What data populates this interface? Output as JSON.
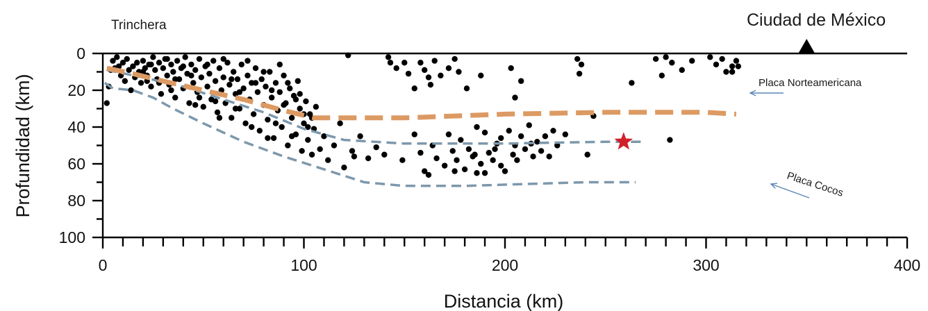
{
  "chart_data": {
    "type": "scatter",
    "xlabel": "Distancia (km)",
    "ylabel": "Profundidad (km)",
    "xlim": [
      0,
      400
    ],
    "ylim": [
      0,
      100
    ],
    "y_inverted": true,
    "xticks": [
      "0",
      "100",
      "200",
      "300",
      "400"
    ],
    "yticks": [
      "0",
      "20",
      "40",
      "60",
      "80",
      "100"
    ],
    "annotations": {
      "trench": "Trinchera",
      "city": "Ciudad de México",
      "north_american_plate": "Placa Norteamericana",
      "cocos_plate": "Placa Cocos"
    },
    "colors": {
      "points": "#000000",
      "continental_line": "#dc9a63",
      "slab_lines": "#7d98ac",
      "star": "#d0202a",
      "arrows": "#5b86b7"
    },
    "lines": {
      "continental_moho": [
        [
          2,
          8
        ],
        [
          15,
          11
        ],
        [
          30,
          15
        ],
        [
          50,
          20
        ],
        [
          70,
          25
        ],
        [
          90,
          31
        ],
        [
          105,
          35
        ],
        [
          110,
          35
        ],
        [
          150,
          35
        ],
        [
          200,
          33
        ],
        [
          250,
          32
        ],
        [
          300,
          32
        ],
        [
          315,
          33
        ]
      ],
      "slab_top": [
        [
          2,
          9
        ],
        [
          20,
          13
        ],
        [
          40,
          18
        ],
        [
          60,
          25
        ],
        [
          80,
          32
        ],
        [
          100,
          41
        ],
        [
          120,
          47
        ],
        [
          150,
          49
        ],
        [
          200,
          49
        ],
        [
          250,
          48
        ],
        [
          270,
          48
        ]
      ],
      "slab_bottom": [
        [
          1,
          16
        ],
        [
          5,
          19
        ],
        [
          15,
          20
        ],
        [
          25,
          24
        ],
        [
          35,
          30
        ],
        [
          50,
          38
        ],
        [
          70,
          48
        ],
        [
          90,
          56
        ],
        [
          110,
          63
        ],
        [
          130,
          70
        ],
        [
          150,
          72
        ],
        [
          180,
          72
        ],
        [
          210,
          71
        ],
        [
          240,
          70
        ],
        [
          265,
          70
        ]
      ]
    },
    "star": {
      "x": 259,
      "y": 48
    },
    "city_marker": {
      "x": 350,
      "y": 0
    },
    "points": [
      [
        2,
        27
      ],
      [
        3,
        18
      ],
      [
        4,
        9
      ],
      [
        5,
        4
      ],
      [
        6,
        8
      ],
      [
        7,
        2
      ],
      [
        8,
        7
      ],
      [
        9,
        12
      ],
      [
        10,
        5
      ],
      [
        11,
        15
      ],
      [
        12,
        3
      ],
      [
        13,
        9
      ],
      [
        14,
        20
      ],
      [
        15,
        7
      ],
      [
        16,
        13
      ],
      [
        17,
        5
      ],
      [
        18,
        10
      ],
      [
        19,
        16
      ],
      [
        20,
        4
      ],
      [
        21,
        8
      ],
      [
        22,
        12
      ],
      [
        23,
        6
      ],
      [
        24,
        18
      ],
      [
        25,
        2
      ],
      [
        26,
        9
      ],
      [
        27,
        14
      ],
      [
        28,
        5
      ],
      [
        29,
        22
      ],
      [
        30,
        8
      ],
      [
        31,
        3
      ],
      [
        32,
        12
      ],
      [
        33,
        17
      ],
      [
        34,
        6
      ],
      [
        35,
        10
      ],
      [
        36,
        24
      ],
      [
        37,
        4
      ],
      [
        38,
        14
      ],
      [
        39,
        8
      ],
      [
        40,
        19
      ],
      [
        41,
        2
      ],
      [
        42,
        11
      ],
      [
        43,
        27
      ],
      [
        44,
        6
      ],
      [
        45,
        16
      ],
      [
        46,
        9
      ],
      [
        47,
        21
      ],
      [
        48,
        3
      ],
      [
        49,
        13
      ],
      [
        50,
        29
      ],
      [
        51,
        7
      ],
      [
        52,
        18
      ],
      [
        53,
        11
      ],
      [
        54,
        25
      ],
      [
        55,
        4
      ],
      [
        56,
        15
      ],
      [
        57,
        32
      ],
      [
        58,
        8
      ],
      [
        59,
        20
      ],
      [
        60,
        13
      ],
      [
        61,
        27
      ],
      [
        62,
        5
      ],
      [
        63,
        17
      ],
      [
        64,
        35
      ],
      [
        65,
        10
      ],
      [
        66,
        22
      ],
      [
        67,
        14
      ],
      [
        68,
        30
      ],
      [
        69,
        6
      ],
      [
        70,
        19
      ],
      [
        71,
        38
      ],
      [
        72,
        12
      ],
      [
        73,
        25
      ],
      [
        74,
        16
      ],
      [
        75,
        33
      ],
      [
        76,
        8
      ],
      [
        77,
        21
      ],
      [
        78,
        42
      ],
      [
        79,
        14
      ],
      [
        80,
        28
      ],
      [
        81,
        18
      ],
      [
        82,
        36
      ],
      [
        83,
        10
      ],
      [
        84,
        24
      ],
      [
        85,
        46
      ],
      [
        86,
        16
      ],
      [
        87,
        31
      ],
      [
        88,
        21
      ],
      [
        89,
        40
      ],
      [
        90,
        12
      ],
      [
        91,
        27
      ],
      [
        92,
        50
      ],
      [
        93,
        19
      ],
      [
        94,
        35
      ],
      [
        95,
        23
      ],
      [
        96,
        44
      ],
      [
        97,
        15
      ],
      [
        98,
        30
      ],
      [
        99,
        53
      ],
      [
        100,
        38
      ],
      [
        101,
        26
      ],
      [
        102,
        47
      ],
      [
        103,
        33
      ],
      [
        104,
        55
      ],
      [
        105,
        41
      ],
      [
        106,
        29
      ],
      [
        108,
        52
      ],
      [
        110,
        45
      ],
      [
        112,
        58
      ],
      [
        115,
        50
      ],
      [
        118,
        38
      ],
      [
        120,
        62
      ],
      [
        124,
        53
      ],
      [
        128,
        45
      ],
      [
        132,
        57
      ],
      [
        136,
        51
      ],
      [
        20,
        10
      ],
      [
        24,
        6
      ],
      [
        28,
        16
      ],
      [
        32,
        3
      ],
      [
        36,
        14
      ],
      [
        40,
        7
      ],
      [
        44,
        12
      ],
      [
        48,
        24
      ],
      [
        52,
        6
      ],
      [
        56,
        26
      ],
      [
        60,
        3
      ],
      [
        64,
        14
      ],
      [
        68,
        21
      ],
      [
        72,
        4
      ],
      [
        76,
        16
      ],
      [
        80,
        10
      ],
      [
        84,
        20
      ],
      [
        88,
        6
      ],
      [
        92,
        16
      ],
      [
        96,
        25
      ],
      [
        100,
        33
      ],
      [
        22,
        15
      ],
      [
        34,
        20
      ],
      [
        46,
        28
      ],
      [
        58,
        35
      ],
      [
        66,
        30
      ],
      [
        74,
        40
      ],
      [
        82,
        46
      ],
      [
        86,
        38
      ],
      [
        90,
        28
      ],
      [
        94,
        45
      ],
      [
        98,
        22
      ],
      [
        102,
        40
      ],
      [
        104,
        35
      ],
      [
        122,
        1
      ],
      [
        142,
        2
      ],
      [
        143,
        5
      ],
      [
        146,
        8
      ],
      [
        150,
        5
      ],
      [
        152,
        11
      ],
      [
        155,
        19
      ],
      [
        158,
        5
      ],
      [
        160,
        9
      ],
      [
        162,
        13
      ],
      [
        163,
        17
      ],
      [
        165,
        4
      ],
      [
        168,
        12
      ],
      [
        172,
        8
      ],
      [
        175,
        3
      ],
      [
        177,
        10
      ],
      [
        181,
        19
      ],
      [
        188,
        12
      ],
      [
        203,
        8
      ],
      [
        205,
        24
      ],
      [
        208,
        15
      ],
      [
        236,
        3
      ],
      [
        238,
        6
      ],
      [
        237,
        11
      ],
      [
        263,
        16
      ],
      [
        275,
        3
      ],
      [
        278,
        12
      ],
      [
        280,
        2
      ],
      [
        283,
        5
      ],
      [
        288,
        9
      ],
      [
        293,
        4
      ],
      [
        302,
        2
      ],
      [
        305,
        6
      ],
      [
        308,
        3
      ],
      [
        310,
        10
      ],
      [
        313,
        7
      ],
      [
        313,
        10
      ],
      [
        315,
        4
      ],
      [
        316,
        7
      ],
      [
        125,
        56
      ],
      [
        140,
        55
      ],
      [
        149,
        58
      ],
      [
        158,
        54
      ],
      [
        160,
        64
      ],
      [
        162,
        66
      ],
      [
        164,
        50
      ],
      [
        166,
        57
      ],
      [
        170,
        61
      ],
      [
        172,
        44
      ],
      [
        174,
        53
      ],
      [
        176,
        58
      ],
      [
        178,
        47
      ],
      [
        180,
        63
      ],
      [
        182,
        52
      ],
      [
        184,
        56
      ],
      [
        186,
        65
      ],
      [
        188,
        60
      ],
      [
        190,
        43
      ],
      [
        192,
        54
      ],
      [
        194,
        58
      ],
      [
        196,
        49
      ],
      [
        198,
        61
      ],
      [
        200,
        64
      ],
      [
        202,
        42
      ],
      [
        204,
        55
      ],
      [
        206,
        58
      ],
      [
        208,
        45
      ],
      [
        210,
        52
      ],
      [
        212,
        39
      ],
      [
        214,
        56
      ],
      [
        216,
        48
      ],
      [
        218,
        53
      ],
      [
        220,
        45
      ],
      [
        222,
        56
      ],
      [
        224,
        42
      ],
      [
        226,
        50
      ],
      [
        230,
        44
      ],
      [
        241,
        55
      ],
      [
        244,
        34
      ],
      [
        282,
        47
      ],
      [
        155,
        44
      ],
      [
        186,
        40
      ],
      [
        198,
        46
      ],
      [
        213,
        49
      ],
      [
        185,
        55
      ],
      [
        195,
        52
      ],
      [
        205,
        50
      ],
      [
        175,
        64
      ],
      [
        190,
        65
      ]
    ]
  }
}
